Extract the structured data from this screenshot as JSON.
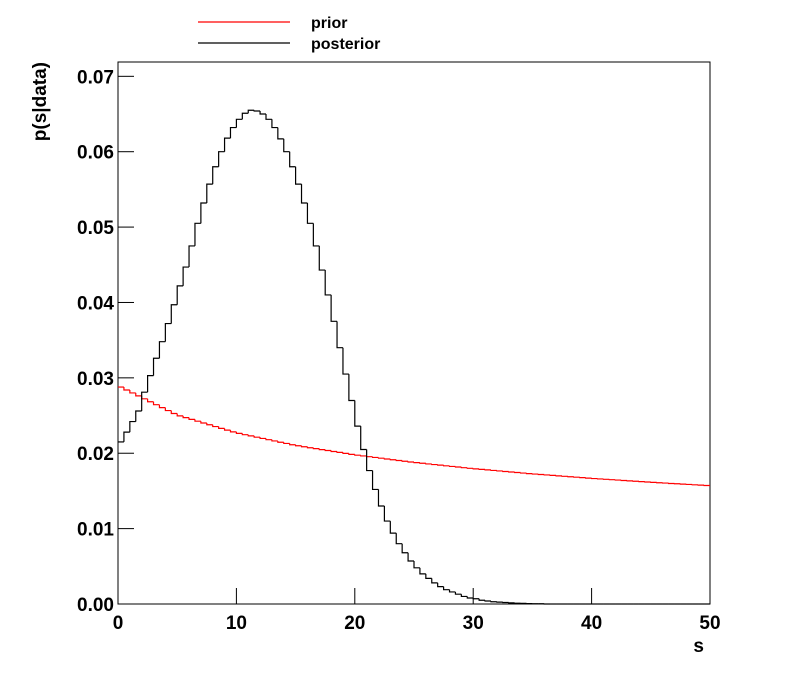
{
  "chart_data": {
    "type": "histogram",
    "x_label": "s",
    "y_label": "p(s|data)",
    "bins": [
      0,
      0.5,
      1,
      1.5,
      2,
      2.5,
      3,
      3.5,
      4,
      4.5,
      5,
      5.5,
      6,
      6.5,
      7,
      7.5,
      8,
      8.5,
      9,
      9.5,
      10,
      10.5,
      11,
      11.5,
      12,
      12.5,
      13,
      13.5,
      14,
      14.5,
      15,
      15.5,
      16,
      16.5,
      17,
      17.5,
      18,
      18.5,
      19,
      19.5,
      20,
      20.5,
      21,
      21.5,
      22,
      22.5,
      23,
      23.5,
      24,
      24.5,
      25,
      25.5,
      26,
      26.5,
      27,
      27.5,
      28,
      28.5,
      29,
      29.5,
      30,
      30.5,
      31,
      31.5,
      32,
      32.5,
      33,
      33.5,
      34,
      34.5,
      35,
      35.5,
      36,
      36.5,
      37,
      37.5,
      38,
      38.5,
      39,
      39.5,
      40,
      40.5,
      41,
      41.5,
      42,
      42.5,
      43,
      43.5,
      44,
      44.5,
      45,
      45.5,
      46,
      46.5,
      47,
      47.5,
      48,
      48.5,
      49,
      49.5,
      50
    ],
    "series": [
      {
        "name": "prior",
        "color": "#ff0000",
        "values": [
          0.02878,
          0.02839,
          0.028,
          0.02761,
          0.02722,
          0.02683,
          0.02644,
          0.02605,
          0.02566,
          0.02527,
          0.02496,
          0.02472,
          0.02449,
          0.02425,
          0.02401,
          0.02378,
          0.02354,
          0.0233,
          0.02307,
          0.02283,
          0.02263,
          0.02246,
          0.0223,
          0.02213,
          0.02196,
          0.0218,
          0.02163,
          0.02146,
          0.0213,
          0.02113,
          0.02099,
          0.02086,
          0.02073,
          0.02061,
          0.02048,
          0.02036,
          0.02023,
          0.02011,
          0.01998,
          0.01985,
          0.01974,
          0.01964,
          0.01954,
          0.01944,
          0.01934,
          0.01924,
          0.01914,
          0.01904,
          0.01894,
          0.01884,
          0.01875,
          0.01867,
          0.01858,
          0.0185,
          0.01842,
          0.01833,
          0.01825,
          0.01817,
          0.01808,
          0.018,
          0.01793,
          0.01786,
          0.01779,
          0.01772,
          0.01765,
          0.01758,
          0.01751,
          0.01744,
          0.01737,
          0.0173,
          0.01724,
          0.01718,
          0.01712,
          0.01706,
          0.017,
          0.01694,
          0.01688,
          0.01682,
          0.01676,
          0.0167,
          0.01664,
          0.01659,
          0.01654,
          0.01649,
          0.01644,
          0.01638,
          0.01633,
          0.01628,
          0.01623,
          0.01618,
          0.01613,
          0.01608,
          0.01604,
          0.01599,
          0.01595,
          0.0159,
          0.01586,
          0.01581,
          0.01577,
          0.01572
        ]
      },
      {
        "name": "posterior",
        "color": "#000000",
        "values": [
          0.0215,
          0.0228,
          0.0242,
          0.0256,
          0.0281,
          0.0303,
          0.0326,
          0.0348,
          0.0372,
          0.0397,
          0.0422,
          0.0447,
          0.0475,
          0.0505,
          0.0532,
          0.0557,
          0.058,
          0.06,
          0.0618,
          0.0632,
          0.0643,
          0.0651,
          0.0655,
          0.0654,
          0.065,
          0.0643,
          0.0632,
          0.0617,
          0.06,
          0.058,
          0.0557,
          0.0532,
          0.0505,
          0.0475,
          0.0443,
          0.041,
          0.0375,
          0.034,
          0.0305,
          0.027,
          0.0236,
          0.0205,
          0.0177,
          0.0152,
          0.013,
          0.011,
          0.0094,
          0.008,
          0.0068,
          0.0057,
          0.0048,
          0.004,
          0.0034,
          0.0028,
          0.0023,
          0.0019,
          0.0016,
          0.0013,
          0.001,
          0.0008,
          0.0007,
          0.0005,
          0.0004,
          0.0003,
          0.00025,
          0.0002,
          0.00015,
          0.0001,
          8e-05,
          6e-05,
          4e-05,
          3e-05,
          0,
          0,
          0,
          0,
          0,
          0,
          0,
          0,
          0,
          0,
          0,
          0,
          0,
          0,
          0,
          0,
          0,
          0,
          0,
          0,
          0,
          0,
          0,
          0,
          0,
          0,
          0,
          0
        ]
      }
    ],
    "xlim": [
      0,
      50
    ],
    "xticks": [
      0,
      10,
      20,
      30,
      40,
      50
    ],
    "ylim": [
      0,
      0.0719
    ],
    "yticks": [
      {
        "value": 0,
        "label": "0.00"
      },
      0.01,
      0.02,
      0.03,
      0.04,
      0.05,
      0.06,
      0.07
    ]
  }
}
